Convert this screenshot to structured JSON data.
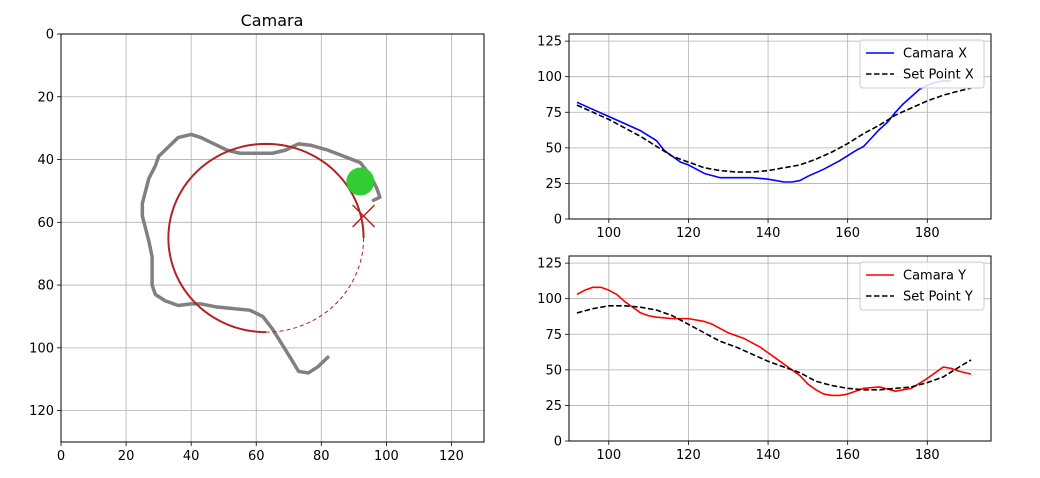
{
  "colors": {
    "trajectory": "#808080",
    "circle": "#b22222",
    "target_marker": "#b22222",
    "ball": "#32cd32",
    "grid": "#b0b0b0",
    "camara_x": "#0000ff",
    "camara_y": "#ff0000",
    "set_point": "#000000"
  },
  "chart_data": [
    {
      "type": "scatter",
      "title": "Camara",
      "xlim": [
        0,
        130
      ],
      "ylim": [
        130,
        0
      ],
      "y_inverted": true,
      "xticks": [
        0,
        20,
        40,
        60,
        80,
        100,
        120
      ],
      "yticks": [
        0,
        20,
        40,
        60,
        80,
        100,
        120
      ],
      "grid": true,
      "trajectory": [
        [
          82,
          103
        ],
        [
          79,
          106
        ],
        [
          76,
          108
        ],
        [
          73,
          107.5
        ],
        [
          71,
          104
        ],
        [
          68,
          99
        ],
        [
          65,
          94
        ],
        [
          62,
          90
        ],
        [
          58,
          88
        ],
        [
          53,
          87.5
        ],
        [
          48,
          87
        ],
        [
          43,
          86
        ],
        [
          40,
          86
        ],
        [
          36,
          86.5
        ],
        [
          32,
          85
        ],
        [
          29,
          83
        ],
        [
          28,
          80
        ],
        [
          28,
          75
        ],
        [
          28,
          71
        ],
        [
          27,
          66
        ],
        [
          26,
          62
        ],
        [
          25,
          58
        ],
        [
          25,
          54
        ],
        [
          26,
          50
        ],
        [
          27,
          46
        ],
        [
          29,
          42
        ],
        [
          30,
          39
        ],
        [
          33,
          36
        ],
        [
          36,
          33
        ],
        [
          40,
          32
        ],
        [
          43,
          33
        ],
        [
          47,
          35
        ],
        [
          51,
          37
        ],
        [
          55,
          38
        ],
        [
          60,
          38
        ],
        [
          65,
          38
        ],
        [
          69,
          37
        ],
        [
          73,
          35
        ],
        [
          77,
          35.5
        ],
        [
          82,
          37
        ],
        [
          87,
          39
        ],
        [
          92,
          41
        ],
        [
          95,
          45
        ],
        [
          97,
          49
        ],
        [
          98,
          52
        ],
        [
          96,
          53
        ]
      ],
      "ball": [
        92,
        47
      ],
      "target": [
        93,
        58
      ],
      "circle": {
        "center": [
          63,
          65
        ],
        "radius": 30,
        "solid_arc_deg": [
          90,
          360
        ],
        "dashed_arc_deg": [
          0,
          90
        ]
      }
    },
    {
      "type": "line",
      "xlim": [
        90,
        196
      ],
      "ylim": [
        0,
        130
      ],
      "xticks": [
        100,
        120,
        140,
        160,
        180
      ],
      "yticks": [
        0,
        25,
        50,
        75,
        100,
        125
      ],
      "grid": true,
      "legend_position": "top-right",
      "series": [
        {
          "name": "Camara X",
          "style": "solid",
          "x": [
            92,
            96,
            100,
            104,
            108,
            112,
            114,
            116,
            118,
            120,
            124,
            128,
            132,
            136,
            140,
            144,
            146,
            148,
            150,
            154,
            158,
            162,
            164,
            166,
            168,
            170,
            172,
            174,
            176,
            178,
            180,
            182,
            184,
            186
          ],
          "y": [
            82,
            77,
            72,
            67,
            62,
            55,
            48,
            44,
            40,
            38,
            32,
            29,
            29,
            29,
            28,
            26,
            26,
            27,
            30,
            35,
            41,
            48,
            51,
            57,
            63,
            68,
            75,
            81,
            86,
            91,
            94,
            96,
            97,
            97
          ]
        },
        {
          "name": "Set Point X",
          "style": "dashed",
          "x": [
            92,
            96,
            100,
            104,
            108,
            112,
            116,
            120,
            124,
            128,
            132,
            136,
            140,
            144,
            148,
            152,
            156,
            160,
            164,
            168,
            172,
            176,
            180,
            184,
            188,
            191
          ],
          "y": [
            80,
            75,
            70,
            64,
            58,
            51,
            44,
            40,
            36,
            34,
            33,
            33,
            34,
            36,
            38,
            42,
            47,
            53,
            60,
            66,
            73,
            78,
            83,
            87,
            90,
            92
          ]
        }
      ]
    },
    {
      "type": "line",
      "xlim": [
        90,
        196
      ],
      "ylim": [
        0,
        130
      ],
      "xticks": [
        100,
        120,
        140,
        160,
        180
      ],
      "yticks": [
        0,
        25,
        50,
        75,
        100,
        125
      ],
      "grid": true,
      "legend_position": "top-right",
      "series": [
        {
          "name": "Camara Y",
          "style": "solid",
          "x": [
            92,
            94,
            96,
            98,
            100,
            102,
            104,
            106,
            108,
            110,
            112,
            116,
            120,
            124,
            126,
            128,
            130,
            134,
            138,
            142,
            146,
            148,
            150,
            152,
            154,
            156,
            158,
            160,
            164,
            168,
            172,
            176,
            180,
            182,
            184,
            186,
            188,
            191
          ],
          "y": [
            103,
            106,
            108,
            108,
            106,
            103,
            98,
            94,
            90,
            88,
            87,
            86,
            86,
            84,
            82,
            79,
            76,
            72,
            66,
            58,
            50,
            46,
            40,
            36,
            33,
            32,
            32,
            33,
            37,
            38,
            35,
            37,
            44,
            48,
            52,
            51,
            49,
            47
          ]
        },
        {
          "name": "Set Point Y",
          "style": "dashed",
          "x": [
            92,
            96,
            100,
            104,
            108,
            112,
            116,
            120,
            124,
            128,
            132,
            136,
            140,
            144,
            148,
            152,
            156,
            160,
            164,
            168,
            172,
            176,
            180,
            184,
            188,
            191
          ],
          "y": [
            90,
            93,
            95,
            95,
            94,
            92,
            88,
            82,
            76,
            70,
            66,
            61,
            56,
            52,
            48,
            42,
            39,
            37,
            36,
            36,
            37,
            38,
            41,
            45,
            52,
            57
          ]
        }
      ]
    }
  ]
}
